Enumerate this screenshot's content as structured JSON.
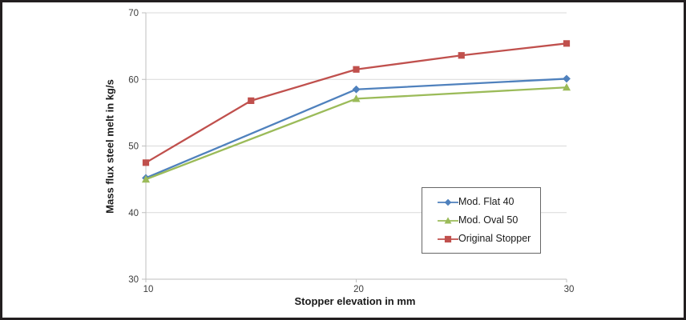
{
  "frame": {
    "background": "#ffffff",
    "border_color": "#231f20"
  },
  "chart_data": {
    "type": "line",
    "title": "",
    "xlabel": "Stopper elevation in mm",
    "ylabel": "Mass flux steel melt in kg/s",
    "xlim": [
      10,
      30
    ],
    "ylim": [
      30,
      70
    ],
    "x_ticks": [
      "10",
      "20",
      "30"
    ],
    "x_tick_values": [
      10,
      20,
      30
    ],
    "y_ticks": [
      "30",
      "40",
      "50",
      "60",
      "70"
    ],
    "y_tick_values": [
      30,
      40,
      50,
      60,
      70
    ],
    "grid": "horizontal gridlines on",
    "legend_position": "boxed, inside plot lower-right",
    "gridline_color": "#d9d9d9",
    "axis_line_color": "#bfbfbf",
    "tick_label_color": "#3d3d3d",
    "series": [
      {
        "name": "Mod. Flat 40",
        "color": "#4F81BD",
        "marker": "diamond",
        "x": [
          10,
          20,
          30
        ],
        "y": [
          45.2,
          58.5,
          60.1
        ]
      },
      {
        "name": "Mod. Oval 50",
        "color": "#9BBB59",
        "marker": "triangle",
        "x": [
          10,
          20,
          30
        ],
        "y": [
          45.0,
          57.1,
          58.8
        ]
      },
      {
        "name": "Original Stopper",
        "color": "#C0504D",
        "marker": "square",
        "x": [
          10,
          15,
          20,
          25,
          30
        ],
        "y": [
          47.5,
          56.8,
          61.5,
          63.6,
          65.4
        ]
      }
    ]
  }
}
